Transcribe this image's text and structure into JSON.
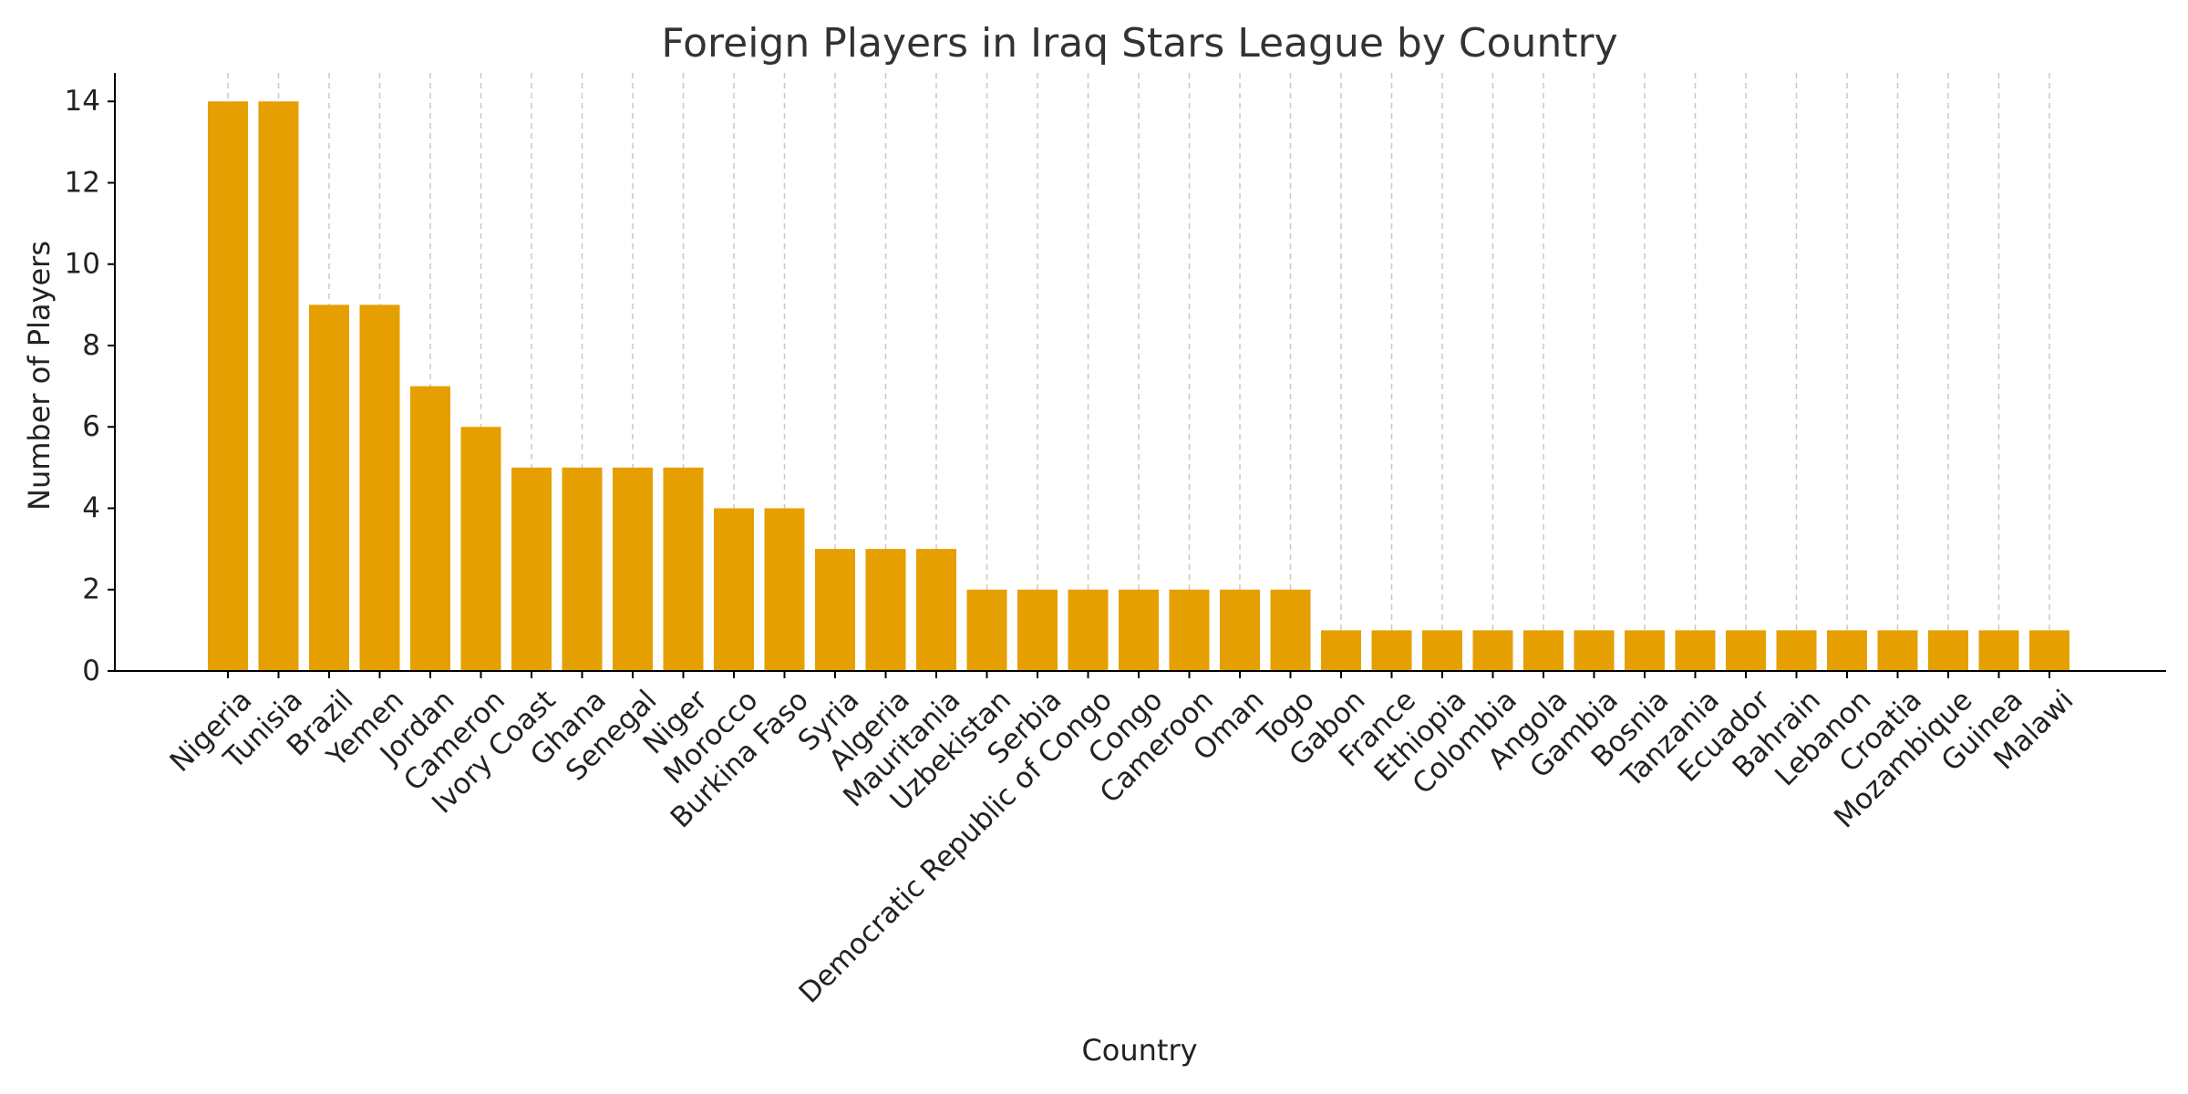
{
  "chart_data": {
    "type": "bar",
    "title": "Foreign Players in Iraq Stars League by Country",
    "xlabel": "Country",
    "ylabel": "Number of Players",
    "ylim": [
      0,
      14.7
    ],
    "yticks": [
      0,
      2,
      4,
      6,
      8,
      10,
      12,
      14
    ],
    "grid": "vertical dashed",
    "bar_color": "#E69F00",
    "categories": [
      "Nigeria",
      "Tunisia",
      "Brazil",
      "Yemen",
      "Jordan",
      "Cameron",
      "Ivory Coast",
      "Ghana",
      "Senegal",
      "Niger",
      "Morocco",
      "Burkina Faso",
      "Syria",
      "Algeria",
      "Mauritania",
      "Uzbekistan",
      "Serbia",
      "Democratic Republic of Congo",
      "Congo",
      "Cameroon",
      "Oman",
      "Togo",
      "Gabon",
      "France",
      "Ethiopia",
      "Colombia",
      "Angola",
      "Gambia",
      "Bosnia",
      "Tanzania",
      "Ecuador",
      "Bahrain",
      "Lebanon",
      "Croatia",
      "Mozambique",
      "Guinea",
      "Malawi"
    ],
    "values": [
      14,
      14,
      9,
      9,
      7,
      6,
      5,
      5,
      5,
      5,
      4,
      4,
      3,
      3,
      3,
      2,
      2,
      2,
      2,
      2,
      2,
      2,
      1,
      1,
      1,
      1,
      1,
      1,
      1,
      1,
      1,
      1,
      1,
      1,
      1,
      1,
      1
    ]
  }
}
